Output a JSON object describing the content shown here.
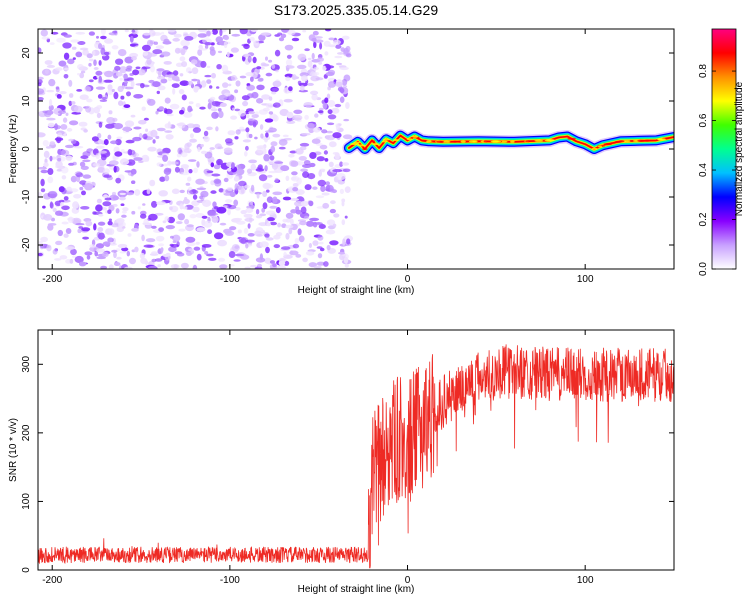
{
  "chart_data": {
    "title": "S173.2025.335.05.14.G29",
    "spectrogram": {
      "type": "heatmap",
      "xlabel": "Height of straight line (km)",
      "ylabel": "Frequency (Hz)",
      "xlim": [
        -208,
        150
      ],
      "ylim": [
        -25,
        25
      ],
      "xticks": [
        -200,
        -100,
        0,
        100
      ],
      "xtick_labels": [
        "-200",
        "-100",
        "0",
        "100"
      ],
      "yticks": [
        -20,
        -10,
        0,
        10,
        20
      ],
      "ytick_labels": [
        "-20",
        "-10",
        "0",
        "10",
        "20"
      ],
      "noise_region_x": [
        -208,
        -33
      ],
      "signal_track": {
        "x": [
          -33,
          -28,
          -24,
          -20,
          -16,
          -12,
          -8,
          -4,
          0,
          4,
          8,
          12,
          20,
          40,
          60,
          80,
          85,
          90,
          95,
          100,
          105,
          110,
          120,
          130,
          140,
          150
        ],
        "freq": [
          0.2,
          1.5,
          0.0,
          1.8,
          0.2,
          2.0,
          1.2,
          2.8,
          1.8,
          2.6,
          1.8,
          1.6,
          1.5,
          1.6,
          1.5,
          1.8,
          2.4,
          2.6,
          1.6,
          1.0,
          0.0,
          0.8,
          1.6,
          1.7,
          1.8,
          2.5
        ]
      },
      "colorbar": {
        "label": "Normalized spectral amplitude",
        "ticks": [
          0.0,
          0.2,
          0.4,
          0.6,
          0.8
        ],
        "tick_labels": [
          "0.0",
          "0.2",
          "0.4",
          "0.6",
          "0.8"
        ],
        "range": [
          0,
          0.97
        ],
        "colors": [
          "#ffffff",
          "#c8a0ff",
          "#8800ff",
          "#0000ff",
          "#00c0ff",
          "#00ff90",
          "#40ff00",
          "#ffff00",
          "#ff9000",
          "#ff0000",
          "#ff0080"
        ]
      }
    },
    "snr": {
      "type": "line",
      "xlabel": "Height of straight line (km)",
      "ylabel": "SNR (10 * v/v)",
      "xlim": [
        -208,
        150
      ],
      "ylim": [
        0,
        350
      ],
      "xticks": [
        -200,
        -100,
        0,
        100
      ],
      "xtick_labels": [
        "-200",
        "-100",
        "0",
        "100"
      ],
      "yticks": [
        0,
        100,
        200,
        300
      ],
      "ytick_labels": [
        "0",
        "100",
        "200",
        "300"
      ],
      "color": "#ee2a24",
      "trend": {
        "x": [
          -208,
          -22,
          -20,
          -15,
          -10,
          -5,
          0,
          5,
          10,
          20,
          30,
          40,
          50,
          60,
          80,
          100,
          120,
          150
        ],
        "y": [
          22,
          22,
          130,
          160,
          180,
          190,
          185,
          200,
          220,
          245,
          265,
          280,
          288,
          290,
          285,
          285,
          285,
          285
        ]
      }
    }
  }
}
